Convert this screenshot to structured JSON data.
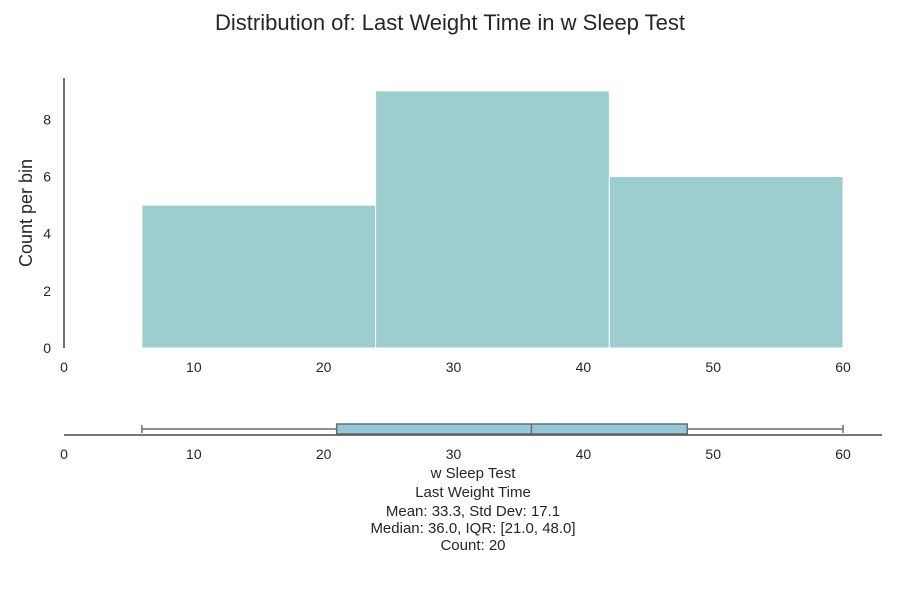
{
  "chart_data": [
    {
      "type": "histogram",
      "title": "Distribution of: Last Weight Time in w Sleep Test",
      "ylabel": "Count per bin",
      "xlabel": "",
      "bins": [
        {
          "start": 6,
          "end": 24,
          "count": 5
        },
        {
          "start": 24,
          "end": 42,
          "count": 9
        },
        {
          "start": 42,
          "end": 60,
          "count": 6
        }
      ],
      "xlim": [
        0,
        63
      ],
      "ylim": [
        0,
        9.45
      ],
      "xticks": [
        0,
        10,
        20,
        30,
        40,
        50,
        60
      ],
      "yticks": [
        0,
        2,
        4,
        6,
        8
      ],
      "bar_color": "#9ccdcf",
      "grid": false
    },
    {
      "type": "boxplot",
      "min": 6,
      "q1": 21,
      "median": 36,
      "q3": 48,
      "max": 60,
      "xlim": [
        0,
        63
      ],
      "xticks": [
        0,
        10,
        20,
        30,
        40,
        50,
        60
      ],
      "box_color": "#93c8dc"
    }
  ],
  "stats": {
    "group": "w Sleep Test",
    "variable": "Last Weight Time",
    "mean_sd": "Mean: 33.3, Std Dev: 17.1",
    "median_iqr": "Median: 36.0, IQR: [21.0, 48.0]",
    "count": "Count: 20"
  }
}
